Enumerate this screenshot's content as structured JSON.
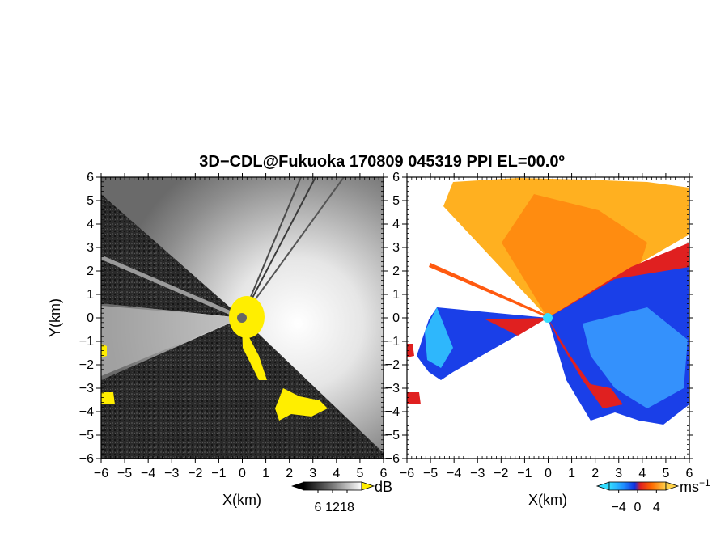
{
  "chart_data": [
    {
      "type": "heatmap",
      "title": "3D−CDL@Fukuoka 170809 045319 PPI EL=00.0º",
      "panel": "reflectivity",
      "xlabel": "X(km)",
      "ylabel": "Y(km)",
      "xlim": [
        -6,
        6
      ],
      "ylim": [
        -6,
        6
      ],
      "xticks": [
        "−6",
        "−5",
        "−4",
        "−3",
        "−2",
        "−1",
        "0",
        "1",
        "2",
        "3",
        "4",
        "5",
        "6"
      ],
      "yticks": [
        "−6",
        "−5",
        "−4",
        "−3",
        "−2",
        "−1",
        "0",
        "1",
        "2",
        "3",
        "4",
        "5",
        "6"
      ],
      "colorbar": {
        "unit": "dB",
        "ticks": [
          "6",
          "12",
          "18"
        ],
        "tick_values": [
          6,
          12,
          18
        ],
        "range": [
          0,
          24
        ],
        "colors": [
          "#000000",
          "#333333",
          "#777777",
          "#bbbbbb",
          "#ffffff"
        ],
        "flag_color": "#ffee00"
      }
    },
    {
      "type": "heatmap",
      "panel": "doppler velocity",
      "xlabel": "X(km)",
      "xlim": [
        -6,
        6
      ],
      "ylim": [
        -6,
        6
      ],
      "xticks": [
        "−6",
        "−5",
        "−4",
        "−3",
        "−2",
        "−1",
        "0",
        "1",
        "2",
        "3",
        "4",
        "5",
        "6"
      ],
      "yticks": [
        "−6",
        "−5",
        "−4",
        "−3",
        "−2",
        "−1",
        "0",
        "1",
        "2",
        "3",
        "4",
        "5",
        "6"
      ],
      "colorbar": {
        "unit": "ms",
        "unit_sup": "−1",
        "ticks": [
          "−4",
          "0",
          "4"
        ],
        "tick_values": [
          -4,
          0,
          4
        ],
        "range": [
          -6,
          6
        ],
        "colors": [
          "#33ddff",
          "#1e90ff",
          "#1030e0",
          "#e02020",
          "#ff6a00",
          "#ffaa00",
          "#ffd24a"
        ]
      }
    }
  ]
}
